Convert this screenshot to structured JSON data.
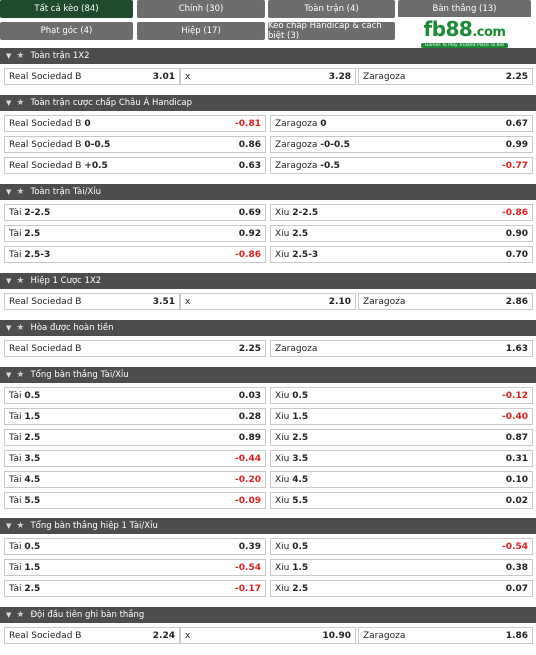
{
  "tabs": [
    {
      "label": "Tất cả kèo (84)",
      "active": true
    },
    {
      "label": "Chính (30)"
    },
    {
      "label": "Toàn trận (4)"
    },
    {
      "label": "Bàn thắng (13)"
    },
    {
      "label": "Phạt góc (4)"
    },
    {
      "label": "Hiệp (17)"
    },
    {
      "label": "Kèo chấp Handicap & cách biệt (3)"
    }
  ],
  "logo": {
    "text": "fb88",
    "domain": ".com",
    "tagline": "Games To Play  Trusted Place To Bet"
  },
  "sections": [
    {
      "title": "Toàn trận 1X2",
      "rows": [
        [
          {
            "label": "Real Sociedad B",
            "odd": "3.01"
          },
          {
            "label": "x",
            "odd": "3.28"
          },
          {
            "label": "Zaragoza",
            "odd": "2.25"
          }
        ]
      ]
    },
    {
      "title": "Toàn trận cược chấp Châu Á Handicap",
      "rows": [
        [
          {
            "label": "Real Sociedad B",
            "line": "0",
            "odd": "-0.81"
          },
          {
            "label": "Zaragoza",
            "line": "0",
            "odd": "0.67"
          }
        ],
        [
          {
            "label": "Real Sociedad B",
            "line": "0-0.5",
            "odd": "0.86"
          },
          {
            "label": "Zaragoza",
            "line": "-0-0.5",
            "odd": "0.99"
          }
        ],
        [
          {
            "label": "Real Sociedad B",
            "line": "+0.5",
            "odd": "0.63"
          },
          {
            "label": "Zaragoza",
            "line": "-0.5",
            "odd": "-0.77"
          }
        ]
      ]
    },
    {
      "title": "Toàn trận Tài/Xỉu",
      "rows": [
        [
          {
            "label": "Tài",
            "line": "2-2.5",
            "odd": "0.69"
          },
          {
            "label": "Xỉu",
            "line": "2-2.5",
            "odd": "-0.86"
          }
        ],
        [
          {
            "label": "Tài",
            "line": "2.5",
            "odd": "0.92"
          },
          {
            "label": "Xỉu",
            "line": "2.5",
            "odd": "0.90"
          }
        ],
        [
          {
            "label": "Tài",
            "line": "2.5-3",
            "odd": "-0.86"
          },
          {
            "label": "Xỉu",
            "line": "2.5-3",
            "odd": "0.70"
          }
        ]
      ]
    },
    {
      "title": "Hiệp 1 Cược 1X2",
      "rows": [
        [
          {
            "label": "Real Sociedad B",
            "odd": "3.51"
          },
          {
            "label": "x",
            "odd": "2.10"
          },
          {
            "label": "Zaragoza",
            "odd": "2.86"
          }
        ]
      ]
    },
    {
      "title": "Hòa được hoàn tiền",
      "rows": [
        [
          {
            "label": "Real Sociedad B",
            "odd": "2.25"
          },
          {
            "label": "Zaragoza",
            "odd": "1.63"
          }
        ]
      ]
    },
    {
      "title": "Tổng bàn thắng Tài/Xỉu",
      "rows": [
        [
          {
            "label": "Tài",
            "line": "0.5",
            "odd": "0.03"
          },
          {
            "label": "Xỉu",
            "line": "0.5",
            "odd": "-0.12"
          }
        ],
        [
          {
            "label": "Tài",
            "line": "1.5",
            "odd": "0.28"
          },
          {
            "label": "Xỉu",
            "line": "1.5",
            "odd": "-0.40"
          }
        ],
        [
          {
            "label": "Tài",
            "line": "2.5",
            "odd": "0.89"
          },
          {
            "label": "Xỉu",
            "line": "2.5",
            "odd": "0.87"
          }
        ],
        [
          {
            "label": "Tài",
            "line": "3.5",
            "odd": "-0.44"
          },
          {
            "label": "Xỉu",
            "line": "3.5",
            "odd": "0.31"
          }
        ],
        [
          {
            "label": "Tài",
            "line": "4.5",
            "odd": "-0.20"
          },
          {
            "label": "Xỉu",
            "line": "4.5",
            "odd": "0.10"
          }
        ],
        [
          {
            "label": "Tài",
            "line": "5.5",
            "odd": "-0.09"
          },
          {
            "label": "Xỉu",
            "line": "5.5",
            "odd": "0.02"
          }
        ]
      ]
    },
    {
      "title": "Tổng bàn thắng hiệp 1 Tài/Xỉu",
      "rows": [
        [
          {
            "label": "Tài",
            "line": "0.5",
            "odd": "0.39"
          },
          {
            "label": "Xỉu",
            "line": "0.5",
            "odd": "-0.54"
          }
        ],
        [
          {
            "label": "Tài",
            "line": "1.5",
            "odd": "-0.54"
          },
          {
            "label": "Xỉu",
            "line": "1.5",
            "odd": "0.38"
          }
        ],
        [
          {
            "label": "Tài",
            "line": "2.5",
            "odd": "-0.17"
          },
          {
            "label": "Xỉu",
            "line": "2.5",
            "odd": "0.07"
          }
        ]
      ]
    },
    {
      "title": "Đội đầu tiên ghi bàn thắng",
      "rows": [
        [
          {
            "label": "Real Sociedad B",
            "odd": "2.24"
          },
          {
            "label": "x",
            "odd": "10.90"
          },
          {
            "label": "Zaragoza",
            "odd": "1.86"
          }
        ]
      ]
    }
  ],
  "colors": {
    "active_tab": "#1f4a2b",
    "tab": "#6d6d6d",
    "header": "#4d4d4d",
    "negative": "#e02020",
    "logo": "#1a8a34"
  }
}
